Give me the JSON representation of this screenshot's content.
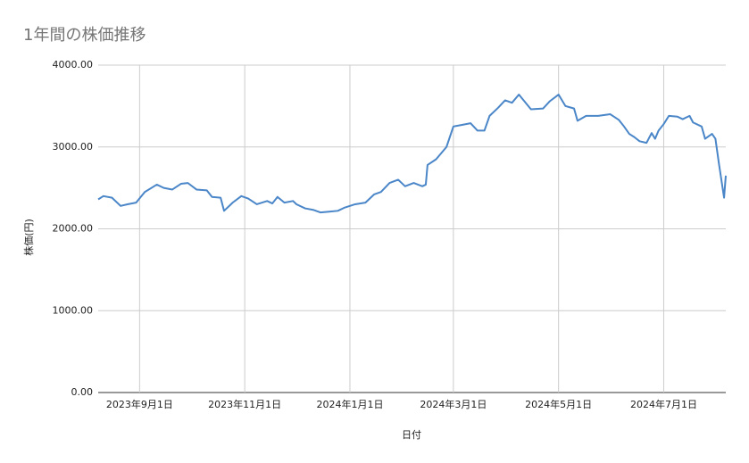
{
  "chart_data": {
    "type": "line",
    "title": "1年間の株価推移",
    "x_label": "日付",
    "y_label": "株価(円)",
    "color": "#4a86c8",
    "grid": true,
    "xlim": [
      "2023-08-08",
      "2024-08-06"
    ],
    "xticks": [
      {
        "value": "2023-09-01",
        "label": "2023年9月1日"
      },
      {
        "value": "2023-11-01",
        "label": "2023年11月1日"
      },
      {
        "value": "2024-01-01",
        "label": "2024年1月1日"
      },
      {
        "value": "2024-03-01",
        "label": "2024年3月1日"
      },
      {
        "value": "2024-05-01",
        "label": "2024年5月1日"
      },
      {
        "value": "2024-07-01",
        "label": "2024年7月1日"
      }
    ],
    "ylim": [
      0,
      4000
    ],
    "yticks": [
      {
        "value": 0,
        "label": "0.00"
      },
      {
        "value": 1000,
        "label": "1000.00"
      },
      {
        "value": 2000,
        "label": "2000.00"
      },
      {
        "value": 3000,
        "label": "3000.00"
      },
      {
        "value": 4000,
        "label": "4000.00"
      }
    ],
    "x": [
      "2023-08-08",
      "2023-08-11",
      "2023-08-16",
      "2023-08-21",
      "2023-08-25",
      "2023-08-30",
      "2023-09-04",
      "2023-09-11",
      "2023-09-15",
      "2023-09-20",
      "2023-09-25",
      "2023-09-29",
      "2023-10-04",
      "2023-10-10",
      "2023-10-13",
      "2023-10-18",
      "2023-10-20",
      "2023-10-25",
      "2023-10-30",
      "2023-11-03",
      "2023-11-08",
      "2023-11-14",
      "2023-11-17",
      "2023-11-20",
      "2023-11-24",
      "2023-11-29",
      "2023-12-01",
      "2023-12-06",
      "2023-12-11",
      "2023-12-15",
      "2023-12-20",
      "2023-12-25",
      "2023-12-29",
      "2024-01-04",
      "2024-01-10",
      "2024-01-15",
      "2024-01-19",
      "2024-01-24",
      "2024-01-29",
      "2024-02-02",
      "2024-02-07",
      "2024-02-12",
      "2024-02-14",
      "2024-02-15",
      "2024-02-20",
      "2024-02-26",
      "2024-03-01",
      "2024-03-06",
      "2024-03-11",
      "2024-03-15",
      "2024-03-19",
      "2024-03-22",
      "2024-03-27",
      "2024-03-31",
      "2024-04-04",
      "2024-04-08",
      "2024-04-15",
      "2024-04-22",
      "2024-04-26",
      "2024-05-01",
      "2024-05-05",
      "2024-05-10",
      "2024-05-12",
      "2024-05-17",
      "2024-05-24",
      "2024-05-31",
      "2024-06-05",
      "2024-06-08",
      "2024-06-11",
      "2024-06-14",
      "2024-06-17",
      "2024-06-21",
      "2024-06-24",
      "2024-06-26",
      "2024-06-28",
      "2024-07-01",
      "2024-07-04",
      "2024-07-09",
      "2024-07-12",
      "2024-07-16",
      "2024-07-18",
      "2024-07-23",
      "2024-07-25",
      "2024-07-29",
      "2024-07-31",
      "2024-08-02",
      "2024-08-05",
      "2024-08-06"
    ],
    "values": [
      2360,
      2400,
      2380,
      2280,
      2300,
      2320,
      2450,
      2540,
      2500,
      2480,
      2550,
      2560,
      2480,
      2470,
      2390,
      2380,
      2220,
      2320,
      2400,
      2370,
      2300,
      2340,
      2310,
      2390,
      2320,
      2340,
      2300,
      2250,
      2230,
      2200,
      2210,
      2220,
      2260,
      2300,
      2320,
      2420,
      2450,
      2560,
      2600,
      2520,
      2560,
      2520,
      2540,
      2780,
      2850,
      3000,
      3250,
      3270,
      3290,
      3200,
      3200,
      3380,
      3480,
      3570,
      3540,
      3640,
      3460,
      3470,
      3560,
      3640,
      3500,
      3470,
      3320,
      3380,
      3380,
      3400,
      3330,
      3250,
      3160,
      3120,
      3070,
      3050,
      3170,
      3100,
      3200,
      3280,
      3380,
      3370,
      3340,
      3380,
      3300,
      3250,
      3100,
      3160,
      3100,
      2800,
      2380,
      2650
    ]
  }
}
